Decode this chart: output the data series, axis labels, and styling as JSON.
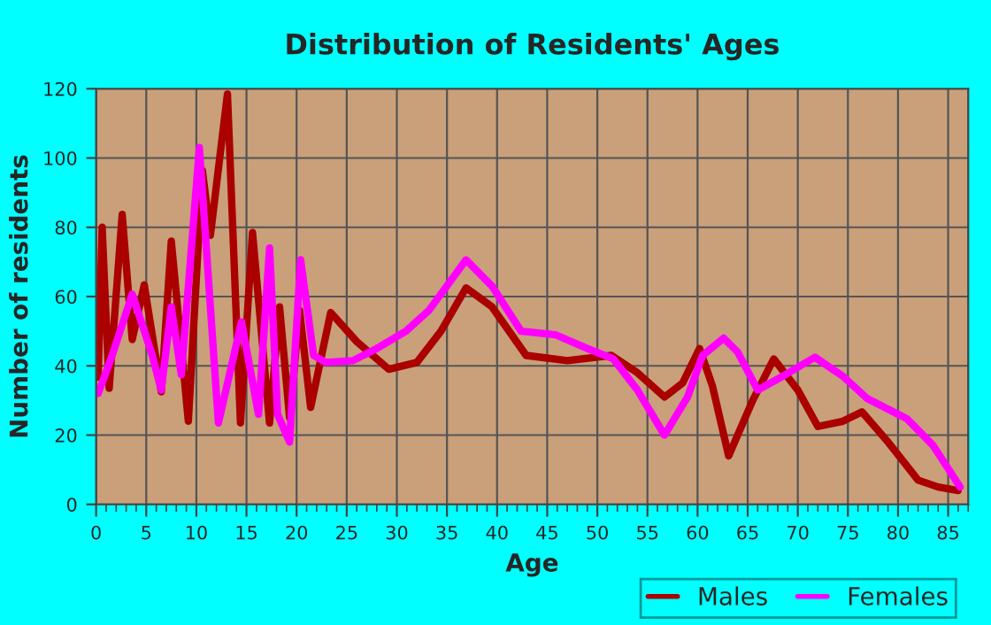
{
  "chart_data": {
    "type": "line",
    "title": "Distribution of Residents' Ages",
    "xlabel": "Age",
    "ylabel": "Number of residents",
    "xlim": [
      0,
      87
    ],
    "ylim": [
      0,
      120
    ],
    "xticks": [
      0,
      5,
      10,
      15,
      20,
      25,
      30,
      35,
      40,
      45,
      50,
      55,
      60,
      65,
      70,
      75,
      80,
      85
    ],
    "yticks": [
      0,
      20,
      40,
      60,
      80,
      100,
      120
    ],
    "grid": true,
    "legend": "bottom right",
    "line_style": "solid",
    "marker": "none",
    "series": [
      {
        "name": "Males",
        "color": "#aa0000",
        "x": [
          0.2,
          0.6,
          1.3,
          2.6,
          3.6,
          4.8,
          6.5,
          7.5,
          9.2,
          10.6,
          11.4,
          13.1,
          14.4,
          15.6,
          17.3,
          18.3,
          19.3,
          20.3,
          21.4,
          23.4,
          26,
          29.2,
          32,
          34.4,
          36.9,
          39.5,
          42.9,
          47,
          51.4,
          54,
          56.7,
          58.5,
          60.2,
          61.5,
          63.1,
          65.5,
          67.6,
          70,
          72,
          74.5,
          76.4,
          79,
          82,
          84,
          86
        ],
        "values": [
          36.7,
          80,
          33.5,
          83.7,
          47.6,
          63.4,
          32.5,
          76,
          24,
          96.4,
          77.7,
          118.5,
          23.5,
          78.5,
          23.5,
          57,
          25,
          56,
          28,
          55.4,
          47,
          39,
          41,
          50,
          62.5,
          57,
          43,
          41.5,
          43,
          38,
          31,
          35,
          45,
          34,
          14,
          30,
          42,
          33,
          22.5,
          24,
          26.7,
          18,
          7,
          5,
          4
        ]
      },
      {
        "name": "Females",
        "color": "#ff00ff",
        "x": [
          0.2,
          1.6,
          3.6,
          5.6,
          6.5,
          7.5,
          8.5,
          10.3,
          12.2,
          14.5,
          16.2,
          17.3,
          18.1,
          19.3,
          20.4,
          21.7,
          22.9,
          25.6,
          28,
          30.9,
          33.2,
          36.9,
          39.5,
          42.4,
          45.8,
          49,
          51.6,
          54,
          56.7,
          59,
          60.5,
          62.6,
          64,
          66,
          68.5,
          71.7,
          74.5,
          76.9,
          80.9,
          83.5,
          86.2
        ],
        "values": [
          32,
          43,
          60.7,
          43,
          33,
          57,
          37.4,
          103,
          23.5,
          52.7,
          26,
          74,
          26,
          18,
          70.6,
          43,
          41,
          41.5,
          45,
          50,
          56,
          70.6,
          63,
          50,
          49,
          45,
          42,
          33,
          20,
          31,
          43,
          48,
          44,
          33,
          37,
          42.5,
          37,
          30.6,
          24.7,
          17,
          5
        ]
      }
    ]
  }
}
